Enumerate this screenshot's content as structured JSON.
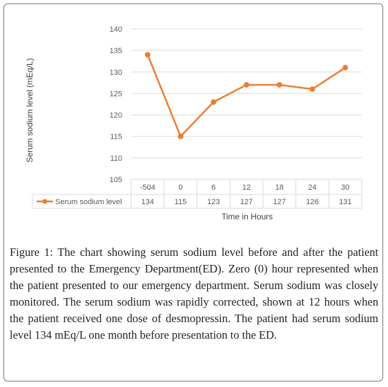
{
  "chart_data": {
    "type": "line",
    "title": "",
    "ylabel": "Serum sodium level (mEq/L)",
    "xlabel": "Time in Hours",
    "ylim": [
      105,
      140
    ],
    "yticks": [
      105,
      110,
      115,
      120,
      125,
      130,
      135,
      140
    ],
    "grid": true,
    "legend": "data-table",
    "categories": [
      "-504",
      "0",
      "6",
      "12",
      "18",
      "24",
      "30"
    ],
    "series": [
      {
        "name": "Serum sodium level",
        "color": "#ed7d31",
        "values": [
          134,
          115,
          123,
          127,
          127,
          126,
          131
        ]
      }
    ]
  },
  "caption": {
    "label": "Figure 1:",
    "text": "The chart showing serum sodium level before and after the patient presented to the Emergency Department(ED). Zero (0) hour represented when the patient presented to our emergency department. Serum sodium was closely monitored. The serum sodium was rapidly corrected, shown at 12 hours when the patient received one dose of desmopressin. The patient had serum sodium level 134 mEq/L one month before presentation to the ED."
  }
}
